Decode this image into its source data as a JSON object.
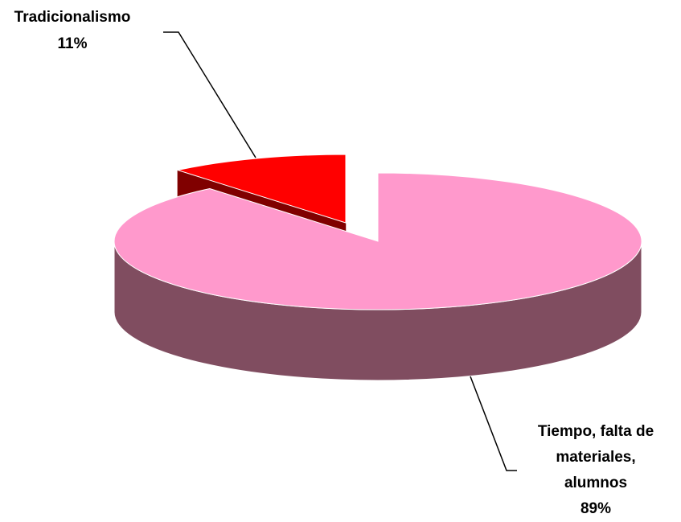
{
  "chart_data": {
    "type": "pie3d",
    "categories": [
      "Tradicionalismo",
      "Tiempo, falta de materiales, alumnos"
    ],
    "values": [
      11,
      89
    ],
    "value_labels": [
      "11%",
      "89%"
    ],
    "colors": [
      "#ff0000",
      "#ff99cc"
    ],
    "side_colors": [
      "#800000",
      "#804d60"
    ],
    "exploded": [
      true,
      false
    ]
  }
}
